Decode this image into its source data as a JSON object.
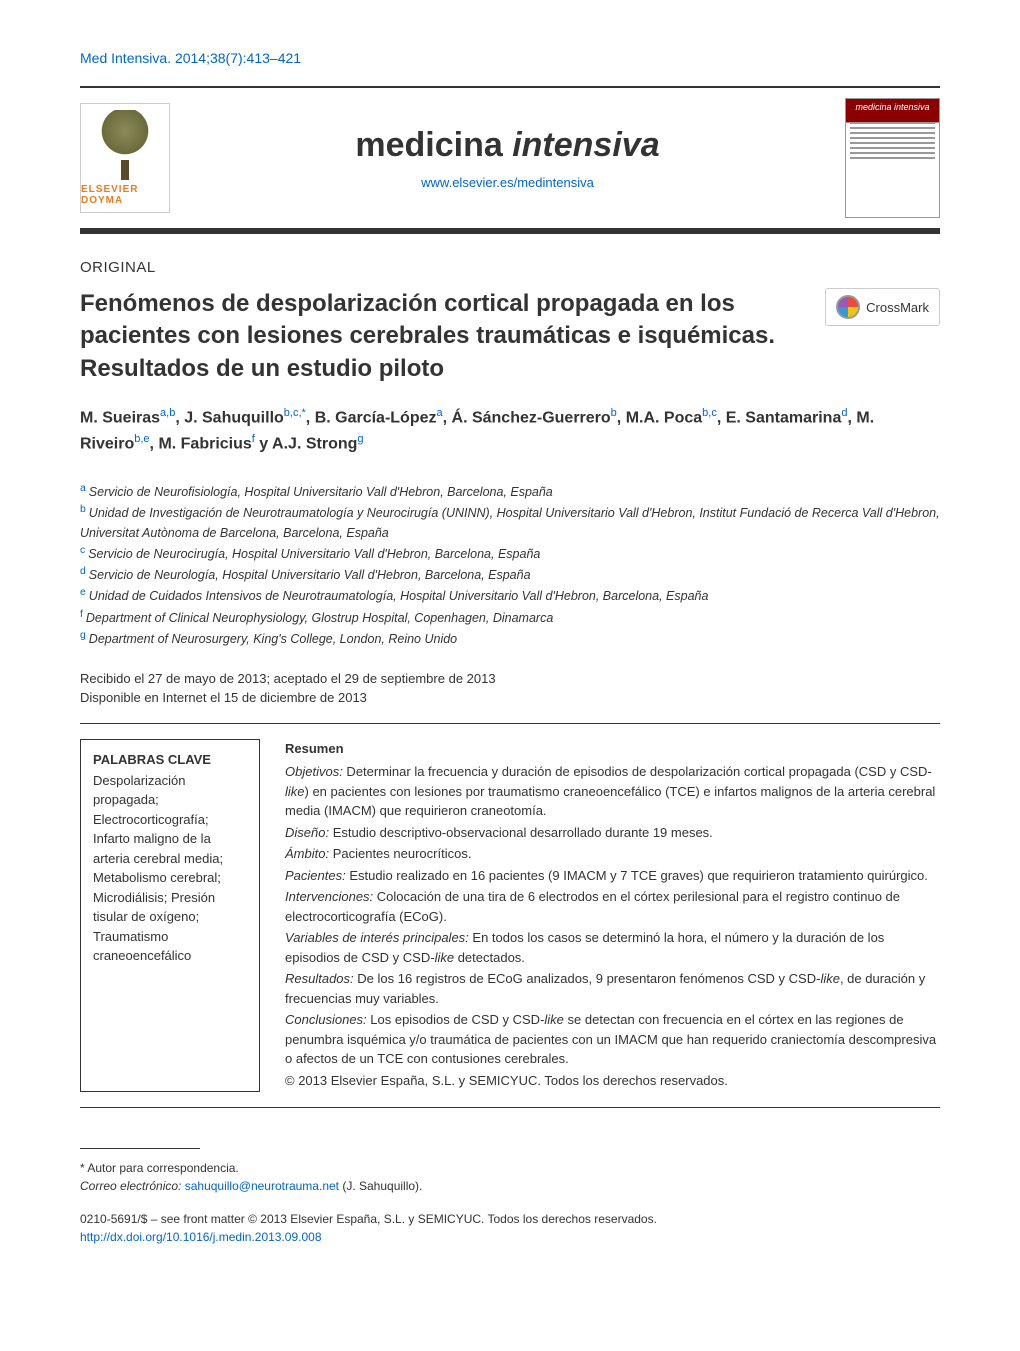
{
  "header": {
    "reference": "Med Intensiva. 2014;38(7):413–421",
    "journal_name_plain": "medicina ",
    "journal_name_italic": "intensiva",
    "journal_url": "www.elsevier.es/medintensiva",
    "publisher_logo_text": "ELSEVIER DOYMA",
    "cover_title": "medicina intensiva"
  },
  "crossmark": {
    "label": "CrossMark"
  },
  "article": {
    "section_label": "ORIGINAL",
    "title": "Fenómenos de despolarización cortical propagada en los pacientes con lesiones cerebrales traumáticas e isquémicas. Resultados de un estudio piloto",
    "authors_html": "M. Sueiras<sup>a,b</sup>, J. Sahuquillo<sup>b,c,*</sup>, B. García-López<sup>a</sup>, Á. Sánchez-Guerrero<sup>b</sup>, M.A. Poca<sup>b,c</sup>, E. Santamarina<sup>d</sup>, M. Riveiro<sup>b,e</sup>, M. Fabricius<sup>f</sup> y A.J. Strong<sup>g</sup>",
    "affiliations": [
      {
        "sup": "a",
        "text": "Servicio de Neurofisiología, Hospital Universitario Vall d'Hebron, Barcelona, España"
      },
      {
        "sup": "b",
        "text": "Unidad de Investigación de Neurotraumatología y Neurocirugía (UNINN), Hospital Universitario Vall d'Hebron, Institut Fundació de Recerca Vall d'Hebron, Universitat Autònoma de Barcelona, Barcelona, España"
      },
      {
        "sup": "c",
        "text": "Servicio de Neurocirugía, Hospital Universitario Vall d'Hebron, Barcelona, España"
      },
      {
        "sup": "d",
        "text": "Servicio de Neurología, Hospital Universitario Vall d'Hebron, Barcelona, España"
      },
      {
        "sup": "e",
        "text": "Unidad de Cuidados Intensivos de Neurotraumatología, Hospital Universitario Vall d'Hebron, Barcelona, España"
      },
      {
        "sup": "f",
        "text": "Department of Clinical Neurophysiology, Glostrup Hospital, Copenhagen, Dinamarca"
      },
      {
        "sup": "g",
        "text": "Department of Neurosurgery, King's College, London, Reino Unido"
      }
    ],
    "received": "Recibido el 27 de mayo de 2013; aceptado el 29 de septiembre de 2013",
    "available": "Disponible en Internet el 15 de diciembre de 2013"
  },
  "keywords": {
    "heading": "PALABRAS CLAVE",
    "list": "Despolarización propagada; Electrocorticografía; Infarto maligno de la arteria cerebral media; Metabolismo cerebral; Microdiálisis; Presión tisular de oxígeno; Traumatismo craneoencefálico"
  },
  "abstract": {
    "heading": "Resumen",
    "items": [
      {
        "label": "Objetivos:",
        "text": "Determinar la frecuencia y duración de episodios de despolarización cortical propagada (CSD y CSD-like) en pacientes con lesiones por traumatismo craneoencefálico (TCE) e infartos malignos de la arteria cerebral media (IMACM) que requirieron craneotomía."
      },
      {
        "label": "Diseño:",
        "text": "Estudio descriptivo-observacional desarrollado durante 19 meses."
      },
      {
        "label": "Ámbito:",
        "text": "Pacientes neurocríticos."
      },
      {
        "label": "Pacientes:",
        "text": "Estudio realizado en 16 pacientes (9 IMACM y 7 TCE graves) que requirieron tratamiento quirúrgico."
      },
      {
        "label": "Intervenciones:",
        "text": "Colocación de una tira de 6 electrodos en el córtex perilesional para el registro continuo de electrocorticografía (ECoG)."
      },
      {
        "label": "Variables de interés principales:",
        "text": "En todos los casos se determinó la hora, el número y la duración de los episodios de CSD y CSD-like detectados."
      },
      {
        "label": "Resultados:",
        "text": "De los 16 registros de ECoG analizados, 9 presentaron fenómenos CSD y CSD-like, de duración y frecuencias muy variables."
      },
      {
        "label": "Conclusiones:",
        "text": "Los episodios de CSD y CSD-like se detectan con frecuencia en el córtex en las regiones de penumbra isquémica y/o traumática de pacientes con un IMACM que han requerido craniectomía descompresiva o afectos de un TCE con contusiones cerebrales."
      }
    ],
    "copyright": "© 2013 Elsevier España, S.L. y SEMICYUC. Todos los derechos reservados."
  },
  "footer": {
    "corr_label": "* Autor para correspondencia.",
    "corr_email_label": "Correo electrónico: ",
    "corr_email": "sahuquillo@neurotrauma.net",
    "corr_name": " (J. Sahuquillo).",
    "issn": "0210-5691/$ – see front matter © 2013 Elsevier España, S.L. y SEMICYUC. Todos los derechos reservados.",
    "doi": "http://dx.doi.org/10.1016/j.medin.2013.09.008"
  },
  "colors": {
    "link": "#0066cc",
    "text": "#333333",
    "accent": "#e67e22",
    "cover_red": "#8b0000"
  }
}
